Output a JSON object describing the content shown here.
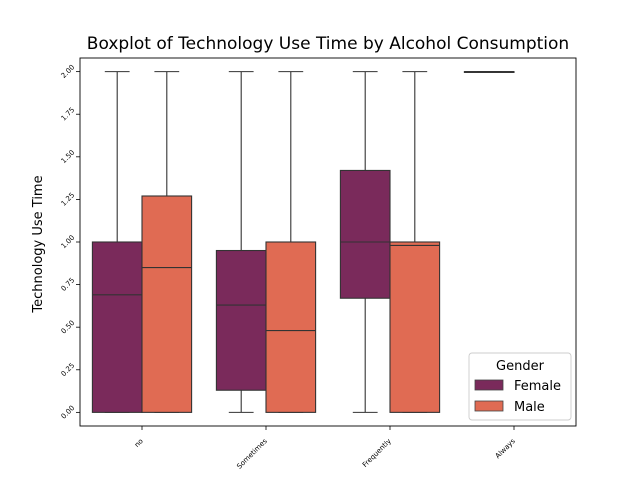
{
  "chart_data": {
    "type": "boxplot",
    "title": "Boxplot of Technology Use Time by Alcohol Consumption",
    "xlabel": "",
    "ylabel": "Technology Use Time",
    "categories": [
      "no",
      "Sometimes",
      "Frequently",
      "Always"
    ],
    "y_ticks": [
      "0.00",
      "0.25",
      "0.50",
      "0.75",
      "1.00",
      "1.25",
      "1.50",
      "1.75",
      "2.00"
    ],
    "ylim": [
      -0.08,
      2.08
    ],
    "legend": {
      "title": "Gender",
      "position": "lower-right"
    },
    "series": [
      {
        "name": "Female",
        "color": "#7a2a5b",
        "boxes": [
          {
            "category": "no",
            "whisker_low": 0.0,
            "q1": 0.0,
            "median": 0.69,
            "q3": 1.0,
            "whisker_high": 2.0
          },
          {
            "category": "Sometimes",
            "whisker_low": 0.0,
            "q1": 0.13,
            "median": 0.63,
            "q3": 0.95,
            "whisker_high": 2.0
          },
          {
            "category": "Frequently",
            "whisker_low": 0.0,
            "q1": 0.67,
            "median": 1.0,
            "q3": 1.42,
            "whisker_high": 2.0
          },
          {
            "category": "Always",
            "whisker_low": 2.0,
            "q1": 2.0,
            "median": 2.0,
            "q3": 2.0,
            "whisker_high": 2.0
          }
        ]
      },
      {
        "name": "Male",
        "color": "#e06b53",
        "boxes": [
          {
            "category": "no",
            "whisker_low": 0.0,
            "q1": 0.0,
            "median": 0.85,
            "q3": 1.27,
            "whisker_high": 2.0
          },
          {
            "category": "Sometimes",
            "whisker_low": 0.0,
            "q1": 0.0,
            "median": 0.48,
            "q3": 1.0,
            "whisker_high": 2.0
          },
          {
            "category": "Frequently",
            "whisker_low": 0.0,
            "q1": 0.0,
            "median": 0.98,
            "q3": 1.0,
            "whisker_high": 2.0
          }
        ]
      }
    ]
  }
}
